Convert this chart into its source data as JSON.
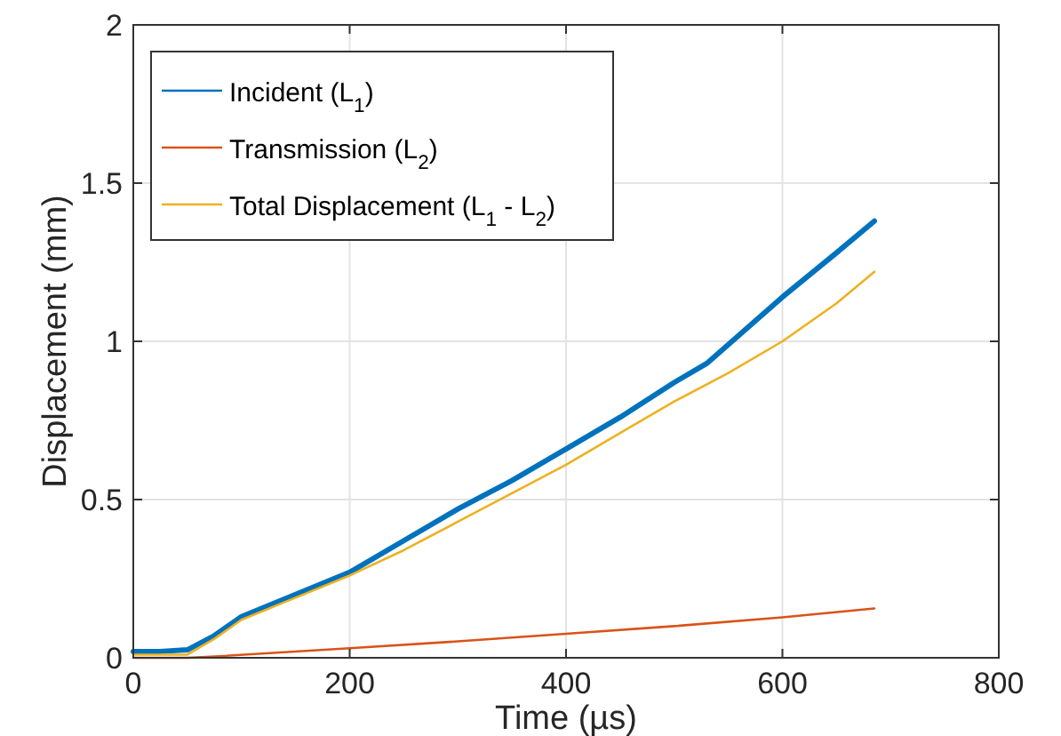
{
  "chart_data": {
    "type": "line",
    "xlabel": "Time (µs)",
    "ylabel": "Displacement (mm)",
    "xlim": [
      0,
      800
    ],
    "xticks": [
      0,
      200,
      400,
      600,
      800
    ],
    "ylim": [
      0,
      2
    ],
    "yticks": [
      0,
      0.5,
      1,
      1.5,
      2
    ],
    "grid": true,
    "legend": "top left",
    "marker": "none",
    "line_style": "solid",
    "series": [
      {
        "name": "Incident (L$_{1}$)",
        "color": "#0072bd",
        "x": [
          0,
          25,
          50,
          75,
          100,
          150,
          200,
          250,
          300,
          350,
          400,
          450,
          500,
          530,
          600,
          650,
          685
        ],
        "values": [
          0.02,
          0.02,
          0.025,
          0.07,
          0.13,
          0.2,
          0.27,
          0.37,
          0.47,
          0.56,
          0.66,
          0.76,
          0.87,
          0.93,
          1.14,
          1.28,
          1.38
        ]
      },
      {
        "name": "Transmission (L$_{2}$)",
        "color": "#d95319",
        "x": [
          0,
          50,
          80,
          200,
          300,
          400,
          500,
          600,
          685
        ],
        "values": [
          0,
          0,
          0.005,
          0.03,
          0.052,
          0.076,
          0.1,
          0.128,
          0.156
        ]
      },
      {
        "name": "Total Displacement (L$_{1}$ - L$_{2}$)",
        "color": "#edb120",
        "x": [
          0,
          25,
          50,
          75,
          100,
          150,
          200,
          250,
          300,
          350,
          400,
          450,
          500,
          550,
          600,
          650,
          685
        ],
        "values": [
          0.01,
          0.01,
          0.01,
          0.06,
          0.12,
          0.19,
          0.26,
          0.34,
          0.43,
          0.52,
          0.61,
          0.71,
          0.81,
          0.9,
          1.0,
          1.12,
          1.22
        ]
      }
    ]
  }
}
